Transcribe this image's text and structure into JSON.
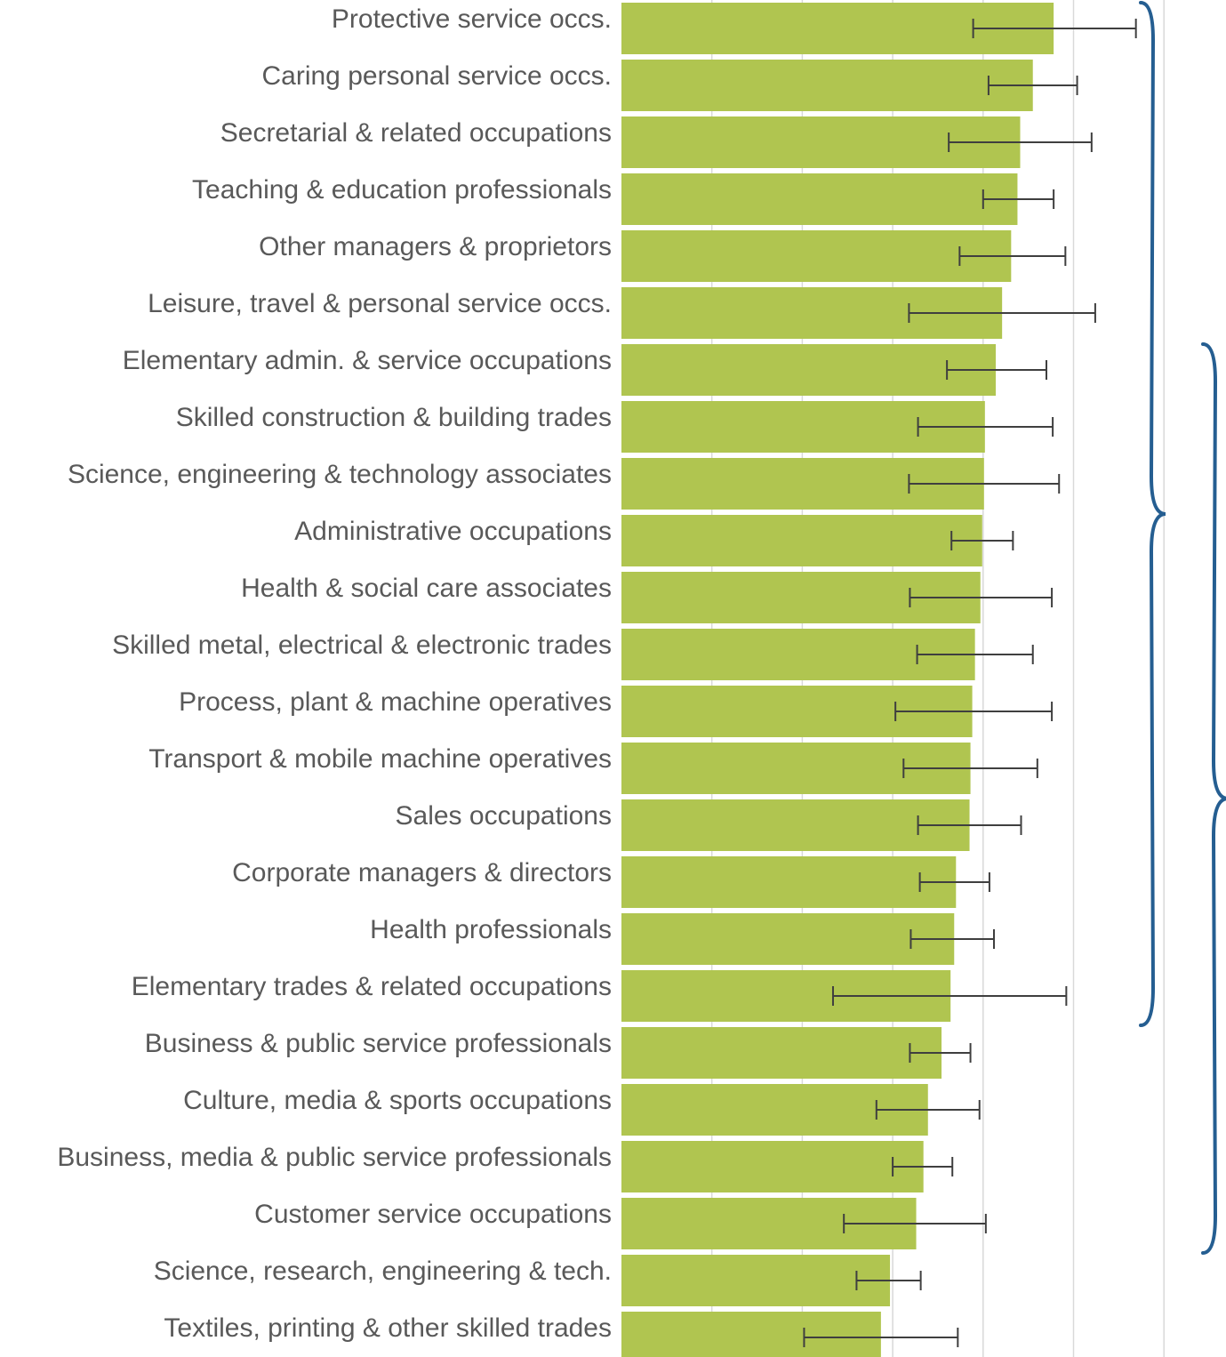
{
  "chart_data": {
    "type": "bar",
    "orientation": "horizontal",
    "title": "",
    "xlabel": "",
    "ylabel": "",
    "xlim": [
      0,
      6
    ],
    "grid": true,
    "tick_labels_shown": false,
    "colors": {
      "bar": "#b0c550",
      "error_bar": "#3f3f3f",
      "bracket": "#255e91",
      "grid": "#d9d9d9",
      "label": "#595959"
    },
    "categories": [
      "Protective service occs.",
      "Caring personal service occs.",
      "Secretarial & related occupations",
      "Teaching & education professionals",
      "Other managers & proprietors",
      "Leisure, travel & personal service occs.",
      "Elementary admin. & service occupations",
      "Skilled construction & building trades",
      "Science, engineering & technology associates",
      "Administrative occupations",
      "Health & social care associates",
      "Skilled metal, electrical & electronic trades",
      "Process, plant & machine operatives",
      "Transport & mobile machine operatives",
      "Sales occupations",
      "Corporate managers & directors",
      "Health professionals",
      "Elementary trades & related occupations",
      "Business & public service professionals",
      "Culture, media & sports occupations",
      "Business, media & public service professionals",
      "Customer service occupations",
      "Science, research, engineering & tech.",
      "Textiles, printing & other skilled trades"
    ],
    "values": [
      4.78,
      4.55,
      4.41,
      4.38,
      4.31,
      4.21,
      4.14,
      4.02,
      4.01,
      3.99,
      3.97,
      3.91,
      3.88,
      3.86,
      3.85,
      3.7,
      3.68,
      3.64,
      3.54,
      3.39,
      3.34,
      3.26,
      2.97,
      2.87
    ],
    "error_low": [
      3.89,
      4.06,
      3.62,
      4.0,
      3.74,
      3.18,
      3.6,
      3.28,
      3.18,
      3.65,
      3.19,
      3.27,
      3.03,
      3.12,
      3.28,
      3.3,
      3.2,
      2.34,
      3.19,
      2.82,
      3.0,
      2.46,
      2.6,
      2.02
    ],
    "error_high": [
      5.69,
      5.04,
      5.2,
      4.78,
      4.91,
      5.24,
      4.7,
      4.77,
      4.84,
      4.33,
      4.76,
      4.55,
      4.76,
      4.6,
      4.42,
      4.07,
      4.12,
      4.92,
      3.86,
      3.96,
      3.66,
      4.03,
      3.31,
      3.72
    ],
    "brackets": [
      {
        "from_category": 0,
        "to_category": 17
      },
      {
        "from_category": 6,
        "to_category": 21
      }
    ]
  }
}
